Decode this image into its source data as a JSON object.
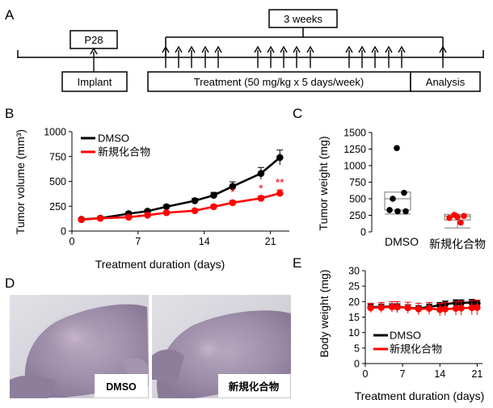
{
  "panel_a": {
    "letter": "A",
    "p28": "P28",
    "weeks": "3 weeks",
    "implant": "Implant",
    "treatment": "Treatment (50 mg/kg x 5 days/week)",
    "analysis": "Analysis"
  },
  "panel_d": {
    "letter": "D",
    "dmso_tag": "DMSO",
    "compound_tag": "新規化合物"
  },
  "chart_data": [
    {
      "panel": "B",
      "type": "line",
      "xlabel": "Treatment duration (days)",
      "ylabel": "Tumor volume (mm³)",
      "xlim": [
        0,
        23
      ],
      "ylim": [
        0,
        1000
      ],
      "xticks": [
        0,
        7,
        14,
        21
      ],
      "yticks": [
        0,
        250,
        500,
        750,
        1000
      ],
      "legend": "top-left",
      "series": [
        {
          "name": "DMSO",
          "color": "#000000",
          "x": [
            1,
            3,
            6,
            8,
            10,
            13,
            15,
            17,
            20,
            22
          ],
          "y": [
            118,
            130,
            175,
            200,
            245,
            305,
            360,
            450,
            580,
            740
          ],
          "err": [
            15,
            15,
            15,
            18,
            20,
            25,
            30,
            45,
            60,
            75
          ]
        },
        {
          "name": "新規化合物",
          "color": "#ff0000",
          "x": [
            1,
            3,
            6,
            8,
            10,
            13,
            15,
            17,
            20,
            22
          ],
          "y": [
            115,
            128,
            140,
            160,
            185,
            205,
            245,
            285,
            330,
            380
          ],
          "err": [
            10,
            10,
            12,
            12,
            15,
            15,
            18,
            22,
            25,
            35
          ]
        }
      ],
      "annotations": [
        {
          "text": "*",
          "x": 17,
          "y": 355,
          "color": "#ff0000"
        },
        {
          "text": "*",
          "x": 20,
          "y": 390,
          "color": "#ff0000"
        },
        {
          "text": "**",
          "x": 22,
          "y": 450,
          "color": "#ff0000"
        }
      ]
    },
    {
      "panel": "C",
      "type": "box",
      "ylabel": "Tumor weight (mg)",
      "ylim": [
        0,
        1500
      ],
      "yticks": [
        0,
        250,
        500,
        750,
        1000,
        1250,
        1500
      ],
      "categories": [
        "DMSO",
        "新規化合物"
      ],
      "groups": [
        {
          "name": "DMSO",
          "color": "#000000",
          "points": [
            1265,
            590,
            500,
            330,
            310,
            310
          ],
          "box": {
            "whisker_low": 270,
            "q1": 330,
            "median": 500,
            "q3": 600,
            "whisker_high": 600
          }
        },
        {
          "name": "新規化合物",
          "color": "#ff0000",
          "points": [
            255,
            240,
            225,
            210,
            140
          ],
          "box": {
            "whisker_low": 60,
            "q1": 180,
            "median": 240,
            "q3": 265,
            "whisker_high": 290
          }
        }
      ]
    },
    {
      "panel": "E",
      "type": "line",
      "xlabel": "Treatment duration (days)",
      "ylabel": "Body weight (mg)",
      "xlim": [
        0,
        22
      ],
      "ylim": [
        0,
        30
      ],
      "xticks": [
        0,
        7,
        14,
        21
      ],
      "yticks": [
        0,
        5,
        10,
        15,
        20,
        25,
        30
      ],
      "legend": "bottom-left",
      "series": [
        {
          "name": "DMSO",
          "color": "#000000",
          "x": [
            1,
            3,
            5,
            6,
            8,
            10,
            12,
            14,
            15,
            17,
            18,
            20,
            21
          ],
          "y": [
            18.2,
            18.3,
            18.4,
            18.4,
            18.0,
            17.8,
            18.3,
            18.8,
            19.2,
            19.6,
            19.6,
            19.7,
            19.4
          ],
          "err": [
            1.0,
            0.9,
            0.9,
            0.9,
            1.0,
            0.9,
            0.9,
            0.9,
            1.0,
            1.0,
            1.0,
            1.0,
            1.0
          ]
        },
        {
          "name": "新規化合物",
          "color": "#ff0000",
          "x": [
            1,
            3,
            5,
            6,
            8,
            10,
            12,
            14,
            15,
            17,
            18,
            20,
            21
          ],
          "y": [
            18.0,
            18.1,
            18.3,
            18.2,
            18.0,
            17.6,
            17.8,
            17.4,
            17.6,
            17.8,
            17.9,
            18.0,
            18.1
          ],
          "err": [
            1.5,
            1.6,
            1.7,
            1.8,
            1.8,
            1.9,
            1.9,
            2.0,
            2.1,
            2.2,
            2.3,
            2.3,
            2.4
          ]
        }
      ]
    }
  ]
}
